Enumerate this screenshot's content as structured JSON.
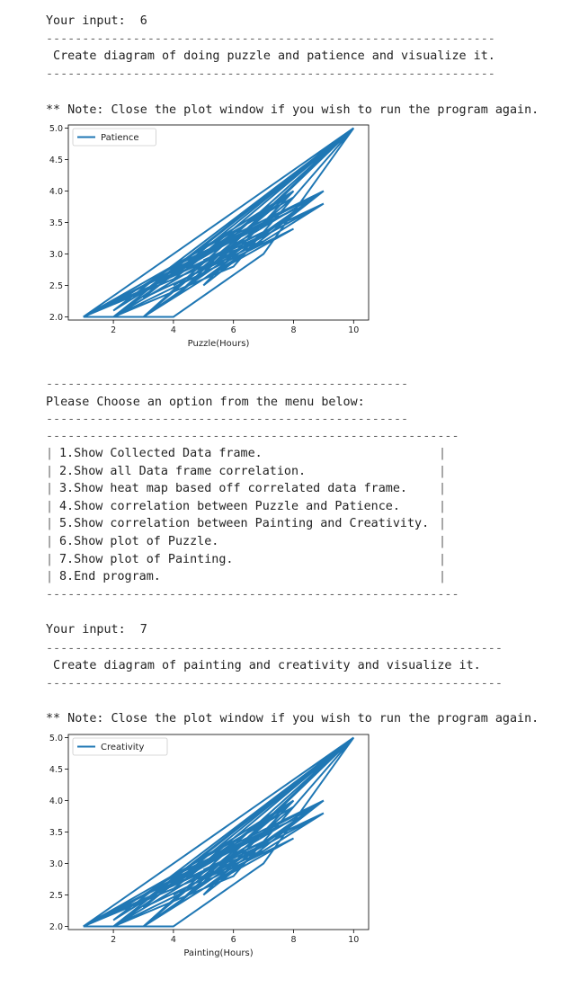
{
  "session": {
    "input_label_1": "Your input:  6",
    "sep_long": "--------------------------------------------------------------",
    "header_1": " Create diagram of doing puzzle and patience and visualize it.",
    "note_1": "** Note: Close the plot window if you wish to run the program again.",
    "sep_menu": "--------------------------------------------------",
    "menu_prompt": "Please Choose an option from the menu below:",
    "sep_box": "---------------------------------------------------------",
    "menu_items": [
      "1.Show Collected Data frame.",
      "2.Show all Data frame correlation.",
      "3.Show heat map based off correlated data frame.",
      "4.Show correlation between Puzzle and Patience.",
      "5.Show correlation between Painting and Creativity.",
      "6.Show plot of Puzzle.",
      "7.Show plot of Painting.",
      "8.End program."
    ],
    "input_label_2": "Your input:  7",
    "sep_long_2": "---------------------------------------------------------------",
    "header_2": " Create diagram of painting and creativity and visualize it.",
    "note_2": "** Note: Close the plot window if you wish to run the program again."
  },
  "colors": {
    "line": "#1f77b4",
    "text": "#222222"
  },
  "chart_data": [
    {
      "type": "line",
      "xlabel": "Puzzle(Hours)",
      "ylabel": "",
      "legend": [
        "Patience"
      ],
      "xticks": [
        2,
        4,
        6,
        8,
        10
      ],
      "yticks": [
        "2.0",
        "2.5",
        "3.0",
        "3.5",
        "4.0",
        "4.5",
        "5.0"
      ],
      "xlim": [
        0.5,
        10.5
      ],
      "ylim": [
        1.95,
        5.05
      ],
      "series": [
        {
          "name": "Patience",
          "x": [
            1,
            4,
            7,
            10,
            3,
            9,
            5,
            8,
            2,
            6,
            10,
            1,
            7,
            4,
            9,
            3,
            8,
            5,
            10,
            2,
            6,
            9,
            1,
            8,
            4,
            7,
            3,
            10,
            5,
            2,
            9,
            6,
            1,
            8,
            4,
            10,
            3,
            7,
            5,
            9,
            2,
            8,
            6,
            10,
            1,
            4,
            7,
            3,
            9,
            5,
            8,
            2,
            10
          ],
          "y": [
            2,
            2,
            3,
            5,
            2,
            4,
            2.5,
            4,
            2,
            2.8,
            5,
            2,
            3.3,
            2.5,
            3.8,
            2,
            4,
            3,
            5,
            2.1,
            3.3,
            4,
            2,
            3.7,
            2.8,
            3.5,
            2.4,
            5,
            2.7,
            2,
            4,
            3,
            2,
            3.9,
            2.3,
            5,
            2.3,
            3.2,
            2.9,
            3.8,
            2.2,
            4,
            3.4,
            5,
            2,
            2.6,
            3.7,
            2.5,
            4,
            2.6,
            3.4,
            2,
            5
          ]
        }
      ]
    },
    {
      "type": "line",
      "xlabel": "Painting(Hours)",
      "ylabel": "",
      "legend": [
        "Creativity"
      ],
      "xticks": [
        2,
        4,
        6,
        8,
        10
      ],
      "yticks": [
        "2.0",
        "2.5",
        "3.0",
        "3.5",
        "4.0",
        "4.5",
        "5.0"
      ],
      "xlim": [
        0.5,
        10.5
      ],
      "ylim": [
        1.95,
        5.05
      ],
      "series": [
        {
          "name": "Creativity",
          "x": [
            1,
            4,
            7,
            10,
            3,
            9,
            5,
            8,
            2,
            6,
            10,
            1,
            7,
            4,
            9,
            3,
            8,
            5,
            10,
            2,
            6,
            9,
            1,
            8,
            4,
            7,
            3,
            10,
            5,
            2,
            9,
            6,
            1,
            8,
            4,
            10,
            3,
            7,
            5,
            9,
            2,
            8,
            6,
            10,
            1,
            4,
            7,
            3,
            9,
            5,
            8,
            2,
            10
          ],
          "y": [
            2,
            2,
            3,
            5,
            2,
            4,
            2.5,
            4,
            2,
            2.8,
            5,
            2,
            3.3,
            2.5,
            3.8,
            2,
            4,
            3,
            5,
            2.1,
            3.3,
            4,
            2,
            3.7,
            2.8,
            3.5,
            2.4,
            5,
            2.7,
            2,
            4,
            3,
            2,
            3.9,
            2.3,
            5,
            2.3,
            3.2,
            2.9,
            3.8,
            2.2,
            4,
            3.4,
            5,
            2,
            2.6,
            3.7,
            2.5,
            4,
            2.6,
            3.4,
            2,
            5
          ]
        }
      ]
    }
  ]
}
